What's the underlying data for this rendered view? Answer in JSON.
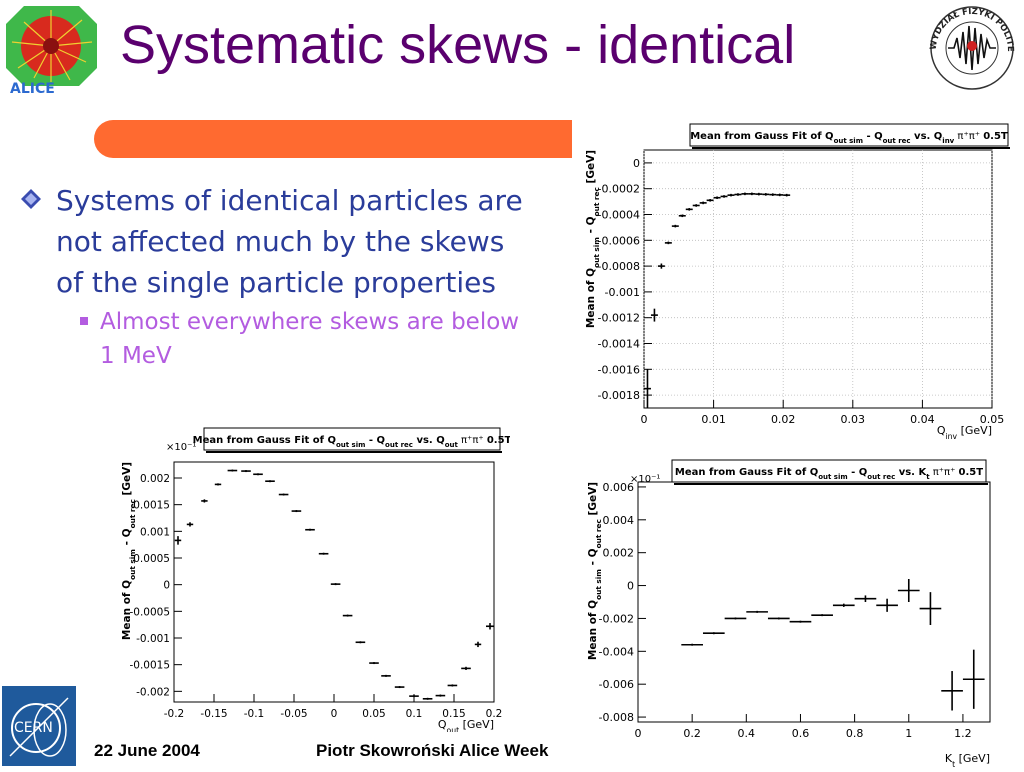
{
  "slide": {
    "title": "Systematic skews - identical",
    "bullets": [
      {
        "text": "Systems of identical particles are not affected much by the skews of the single particle properties"
      }
    ],
    "subbullets": [
      {
        "text": "Almost everywhere skews are below 1 MeV"
      }
    ],
    "footer": {
      "date": "22 June 2004",
      "author": "Piotr Skowroński  Alice Week"
    },
    "logos": {
      "cern_text": "CERN",
      "alice_text": "ALICE",
      "warsaw_text": "WYDZIAŁ FIZYKI POLITECHNIKA WARSZAWSKA"
    },
    "colors": {
      "title": "#5a006e",
      "bullet": "#2a3c9a",
      "subbullet": "#b35ce0",
      "banner": "#ff6a30"
    }
  },
  "chart_data": [
    {
      "type": "scatter",
      "title": "Mean from Gauss Fit of Q_out sim - Q_out rec vs. Q_inv  π⁺π⁺  0.5T",
      "title_main": "Mean from Gauss Fit of Q",
      "title_sub1": "out sim",
      "title_mid": " - Q",
      "title_sub2": "out rec",
      "title_vs": " vs. Q",
      "title_sub3": "inv",
      "title_particles": "π⁺π⁺",
      "title_field": "0.5T",
      "xlabel": "Q_inv [GeV]",
      "xlabel_main": "Q",
      "xlabel_sub": "inv",
      "xlabel_unit": " [GeV]",
      "ylabel": "Mean of Q_out sim - Q_out rec [GeV]",
      "ylabel_main": "Mean of Q",
      "ylabel_sub1": "out sim",
      "ylabel_mid": " - Q",
      "ylabel_sub2": "out rec",
      "ylabel_unit": " [GeV]",
      "exponent": "",
      "xlim": [
        0,
        0.05
      ],
      "ylim": [
        -0.0019,
        0.0001
      ],
      "xticks": [
        0,
        0.01,
        0.02,
        0.03,
        0.04,
        0.05
      ],
      "xtick_labels": [
        "0",
        "0.01",
        "0.02",
        "0.03",
        "0.04",
        "0.05"
      ],
      "yticks": [
        0,
        -0.0002,
        -0.0004,
        -0.0006,
        -0.0008,
        -0.001,
        -0.0012,
        -0.0014,
        -0.0016,
        -0.0018
      ],
      "ytick_labels": [
        "0",
        "-0.0002",
        "-0.0004",
        "-0.0006",
        "-0.0008",
        "-0.001",
        "-0.0012",
        "-0.0014",
        "-0.0016",
        "-0.0018"
      ],
      "grid": true,
      "points": [
        {
          "x": 0.0005,
          "y": -0.00175,
          "xe": 0.0005,
          "ye": 0.00015
        },
        {
          "x": 0.0015,
          "y": -0.00118,
          "xe": 0.0005,
          "ye": 5e-05
        },
        {
          "x": 0.0025,
          "y": -0.0008,
          "xe": 0.0005,
          "ye": 2e-05
        },
        {
          "x": 0.0035,
          "y": -0.00062,
          "xe": 0.0005,
          "ye": 1e-05
        },
        {
          "x": 0.0045,
          "y": -0.00049,
          "xe": 0.0005,
          "ye": 1e-05
        },
        {
          "x": 0.0055,
          "y": -0.00041,
          "xe": 0.0005,
          "ye": 1e-05
        },
        {
          "x": 0.0065,
          "y": -0.00036,
          "xe": 0.0005,
          "ye": 1e-05
        },
        {
          "x": 0.0075,
          "y": -0.00033,
          "xe": 0.0005,
          "ye": 1e-05
        },
        {
          "x": 0.0085,
          "y": -0.00031,
          "xe": 0.0005,
          "ye": 1e-05
        },
        {
          "x": 0.0095,
          "y": -0.00029,
          "xe": 0.0005,
          "ye": 1e-05
        },
        {
          "x": 0.0105,
          "y": -0.00027,
          "xe": 0.0005,
          "ye": 1e-05
        },
        {
          "x": 0.0115,
          "y": -0.00026,
          "xe": 0.0005,
          "ye": 1e-05
        },
        {
          "x": 0.0125,
          "y": -0.00025,
          "xe": 0.0005,
          "ye": 1e-05
        },
        {
          "x": 0.0135,
          "y": -0.000245,
          "xe": 0.0005,
          "ye": 1e-05
        },
        {
          "x": 0.0145,
          "y": -0.00024,
          "xe": 0.0005,
          "ye": 1e-05
        },
        {
          "x": 0.0155,
          "y": -0.00024,
          "xe": 0.0005,
          "ye": 1e-05
        },
        {
          "x": 0.0165,
          "y": -0.000242,
          "xe": 0.0005,
          "ye": 1e-05
        },
        {
          "x": 0.0175,
          "y": -0.000244,
          "xe": 0.0005,
          "ye": 1e-05
        },
        {
          "x": 0.0185,
          "y": -0.000246,
          "xe": 0.0005,
          "ye": 1e-05
        },
        {
          "x": 0.0195,
          "y": -0.000248,
          "xe": 0.0005,
          "ye": 1e-05
        },
        {
          "x": 0.0205,
          "y": -0.00025,
          "xe": 0.0005,
          "ye": 1e-05
        }
      ]
    },
    {
      "type": "scatter",
      "title": "Mean from Gauss Fit of Q_out sim - Q_out rec vs. Q_out  π⁺π⁺  0.5T",
      "title_main": "Mean from Gauss Fit of Q",
      "title_sub1": "out sim",
      "title_mid": " - Q",
      "title_sub2": "out rec",
      "title_vs": " vs. Q",
      "title_sub3": "out",
      "title_particles": "π⁺π⁺",
      "title_field": "0.5T",
      "xlabel": "Q_out [GeV]",
      "xlabel_main": "Q",
      "xlabel_sub": "out",
      "xlabel_unit": " [GeV]",
      "ylabel": "Mean of Q_out sim - Q_out rec [GeV]",
      "ylabel_main": "Mean of Q",
      "ylabel_sub1": "out sim",
      "ylabel_mid": " - Q",
      "ylabel_sub2": "out rec",
      "ylabel_unit": " [GeV]",
      "exponent": "×10⁻¹",
      "xlim": [
        -0.2,
        0.2
      ],
      "ylim": [
        -0.0022,
        0.0023
      ],
      "xticks": [
        -0.2,
        -0.15,
        -0.1,
        -0.05,
        0,
        0.05,
        0.1,
        0.15,
        0.2
      ],
      "xtick_labels": [
        "-0.2",
        "-0.15",
        "-0.1",
        "-0.05",
        "0",
        "0.05",
        "0.1",
        "0.15",
        "0.2"
      ],
      "yticks": [
        0.002,
        0.0015,
        0.001,
        0.0005,
        0,
        -0.0005,
        -0.001,
        -0.0015,
        -0.002
      ],
      "ytick_labels": [
        "0.002",
        "0.0015",
        "0.001",
        "0.0005",
        "0",
        "-0.0005",
        "-0.001",
        "-0.0015",
        "-0.002"
      ],
      "grid": false,
      "points": [
        {
          "x": -0.195,
          "y": 0.00083,
          "xe": 0.004,
          "ye": 8e-05
        },
        {
          "x": -0.18,
          "y": 0.00113,
          "xe": 0.004,
          "ye": 4e-05
        },
        {
          "x": -0.162,
          "y": 0.00157,
          "xe": 0.004,
          "ye": 3e-05
        },
        {
          "x": -0.145,
          "y": 0.00188,
          "xe": 0.004,
          "ye": 2e-05
        },
        {
          "x": -0.127,
          "y": 0.00214,
          "xe": 0.006,
          "ye": 1e-05
        },
        {
          "x": -0.11,
          "y": 0.00213,
          "xe": 0.006,
          "ye": 1e-05
        },
        {
          "x": -0.095,
          "y": 0.00207,
          "xe": 0.006,
          "ye": 1e-05
        },
        {
          "x": -0.08,
          "y": 0.00194,
          "xe": 0.006,
          "ye": 1e-05
        },
        {
          "x": -0.063,
          "y": 0.00169,
          "xe": 0.006,
          "ye": 1e-05
        },
        {
          "x": -0.047,
          "y": 0.00138,
          "xe": 0.006,
          "ye": 1e-05
        },
        {
          "x": -0.03,
          "y": 0.00103,
          "xe": 0.006,
          "ye": 1e-05
        },
        {
          "x": -0.013,
          "y": 0.00058,
          "xe": 0.006,
          "ye": 1e-05
        },
        {
          "x": 0.002,
          "y": 1e-05,
          "xe": 0.006,
          "ye": 1e-05
        },
        {
          "x": 0.017,
          "y": -0.00058,
          "xe": 0.006,
          "ye": 1e-05
        },
        {
          "x": 0.033,
          "y": -0.00108,
          "xe": 0.006,
          "ye": 1e-05
        },
        {
          "x": 0.05,
          "y": -0.00147,
          "xe": 0.006,
          "ye": 1e-05
        },
        {
          "x": 0.065,
          "y": -0.00171,
          "xe": 0.006,
          "ye": 1e-05
        },
        {
          "x": 0.082,
          "y": -0.00192,
          "xe": 0.006,
          "ye": 1e-05
        },
        {
          "x": 0.1,
          "y": -0.00209,
          "xe": 0.006,
          "ye": 1e-05
        },
        {
          "x": 0.117,
          "y": -0.00214,
          "xe": 0.006,
          "ye": 1e-05
        },
        {
          "x": 0.133,
          "y": -0.00208,
          "xe": 0.006,
          "ye": 2e-05
        },
        {
          "x": 0.148,
          "y": -0.00189,
          "xe": 0.006,
          "ye": 2e-05
        },
        {
          "x": 0.165,
          "y": -0.00157,
          "xe": 0.006,
          "ye": 3e-05
        },
        {
          "x": 0.18,
          "y": -0.00112,
          "xe": 0.004,
          "ye": 5e-05
        },
        {
          "x": 0.195,
          "y": -0.00078,
          "xe": 0.005,
          "ye": 6e-05
        }
      ]
    },
    {
      "type": "scatter",
      "title": "Mean from Gauss Fit of Q_out sim - Q_out rec vs. K_t  π⁺π⁺  0.5T",
      "title_main": "Mean from Gauss Fit of Q",
      "title_sub1": "out sim",
      "title_mid": " - Q",
      "title_sub2": "out rec",
      "title_vs": " vs. K",
      "title_sub3": "t",
      "title_particles": "π⁺π⁺",
      "title_field": "0.5T",
      "xlabel": "K_t [GeV]",
      "xlabel_main": "K",
      "xlabel_sub": "t",
      "xlabel_unit": " [GeV]",
      "ylabel": "Mean of Q_out sim - Q_out rec [GeV]",
      "ylabel_main": "Mean of Q",
      "ylabel_sub1": "out sim",
      "ylabel_mid": " - Q",
      "ylabel_sub2": "out rec",
      "ylabel_unit": " [GeV]",
      "exponent": "×10⁻¹",
      "xlim": [
        0,
        1.3
      ],
      "ylim": [
        -0.0083,
        0.0063
      ],
      "xticks": [
        0,
        0.2,
        0.4,
        0.6,
        0.8,
        1,
        1.2
      ],
      "xtick_labels": [
        "0",
        "0.2",
        "0.4",
        "0.6",
        "0.8",
        "1",
        "1.2"
      ],
      "yticks": [
        0.006,
        0.004,
        0.002,
        0,
        -0.002,
        -0.004,
        -0.006,
        -0.008
      ],
      "ytick_labels": [
        "0.006",
        "0.004",
        "0.002",
        "0",
        "-0.002",
        "-0.004",
        "-0.006",
        "-0.008"
      ],
      "grid": false,
      "points": [
        {
          "x": 0.2,
          "y": -0.0036,
          "xe": 0.04,
          "ye": 4e-05
        },
        {
          "x": 0.28,
          "y": -0.0029,
          "xe": 0.04,
          "ye": 4e-05
        },
        {
          "x": 0.36,
          "y": -0.002,
          "xe": 0.04,
          "ye": 4e-05
        },
        {
          "x": 0.44,
          "y": -0.0016,
          "xe": 0.04,
          "ye": 4e-05
        },
        {
          "x": 0.52,
          "y": -0.002,
          "xe": 0.04,
          "ye": 4e-05
        },
        {
          "x": 0.6,
          "y": -0.0022,
          "xe": 0.04,
          "ye": 4e-05
        },
        {
          "x": 0.68,
          "y": -0.0018,
          "xe": 0.04,
          "ye": 4e-05
        },
        {
          "x": 0.76,
          "y": -0.0012,
          "xe": 0.04,
          "ye": 0.0001
        },
        {
          "x": 0.84,
          "y": -0.0008,
          "xe": 0.04,
          "ye": 0.0002
        },
        {
          "x": 0.92,
          "y": -0.0012,
          "xe": 0.04,
          "ye": 0.0004
        },
        {
          "x": 1.0,
          "y": -0.0003,
          "xe": 0.04,
          "ye": 0.0007
        },
        {
          "x": 1.08,
          "y": -0.0014,
          "xe": 0.04,
          "ye": 0.001
        },
        {
          "x": 1.16,
          "y": -0.0064,
          "xe": 0.04,
          "ye": 0.0012
        },
        {
          "x": 1.24,
          "y": -0.0057,
          "xe": 0.04,
          "ye": 0.0018
        }
      ]
    }
  ]
}
